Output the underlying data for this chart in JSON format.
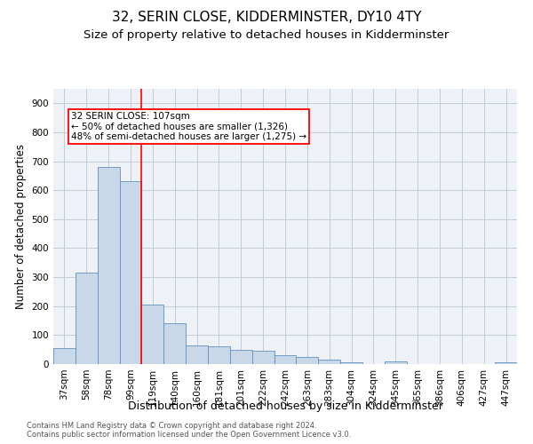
{
  "title": "32, SERIN CLOSE, KIDDERMINSTER, DY10 4TY",
  "subtitle": "Size of property relative to detached houses in Kidderminster",
  "xlabel": "Distribution of detached houses by size in Kidderminster",
  "ylabel": "Number of detached properties",
  "categories": [
    "37sqm",
    "58sqm",
    "78sqm",
    "99sqm",
    "119sqm",
    "140sqm",
    "160sqm",
    "181sqm",
    "201sqm",
    "222sqm",
    "242sqm",
    "263sqm",
    "283sqm",
    "304sqm",
    "324sqm",
    "345sqm",
    "365sqm",
    "386sqm",
    "406sqm",
    "427sqm",
    "447sqm"
  ],
  "values": [
    55,
    315,
    680,
    630,
    205,
    140,
    65,
    60,
    50,
    45,
    30,
    25,
    15,
    5,
    0,
    10,
    0,
    0,
    0,
    0,
    5
  ],
  "bar_color": "#c8d8e8",
  "bar_edge_color": "#6090c0",
  "grid_color": "#c0ccd8",
  "background_color": "#eef2f7",
  "red_line_x": 3.5,
  "annotation_text_line1": "32 SERIN CLOSE: 107sqm",
  "annotation_text_line2": "← 50% of detached houses are smaller (1,326)",
  "annotation_text_line3": "48% of semi-detached houses are larger (1,275) →",
  "footnote1": "Contains HM Land Registry data © Crown copyright and database right 2024.",
  "footnote2": "Contains public sector information licensed under the Open Government Licence v3.0.",
  "ylim": [
    0,
    950
  ],
  "yticks": [
    0,
    100,
    200,
    300,
    400,
    500,
    600,
    700,
    800,
    900
  ],
  "title_fontsize": 11,
  "subtitle_fontsize": 9.5,
  "ylabel_fontsize": 8.5,
  "xlabel_fontsize": 9,
  "tick_fontsize": 7.5,
  "annot_fontsize": 7.5,
  "footnote_fontsize": 6
}
